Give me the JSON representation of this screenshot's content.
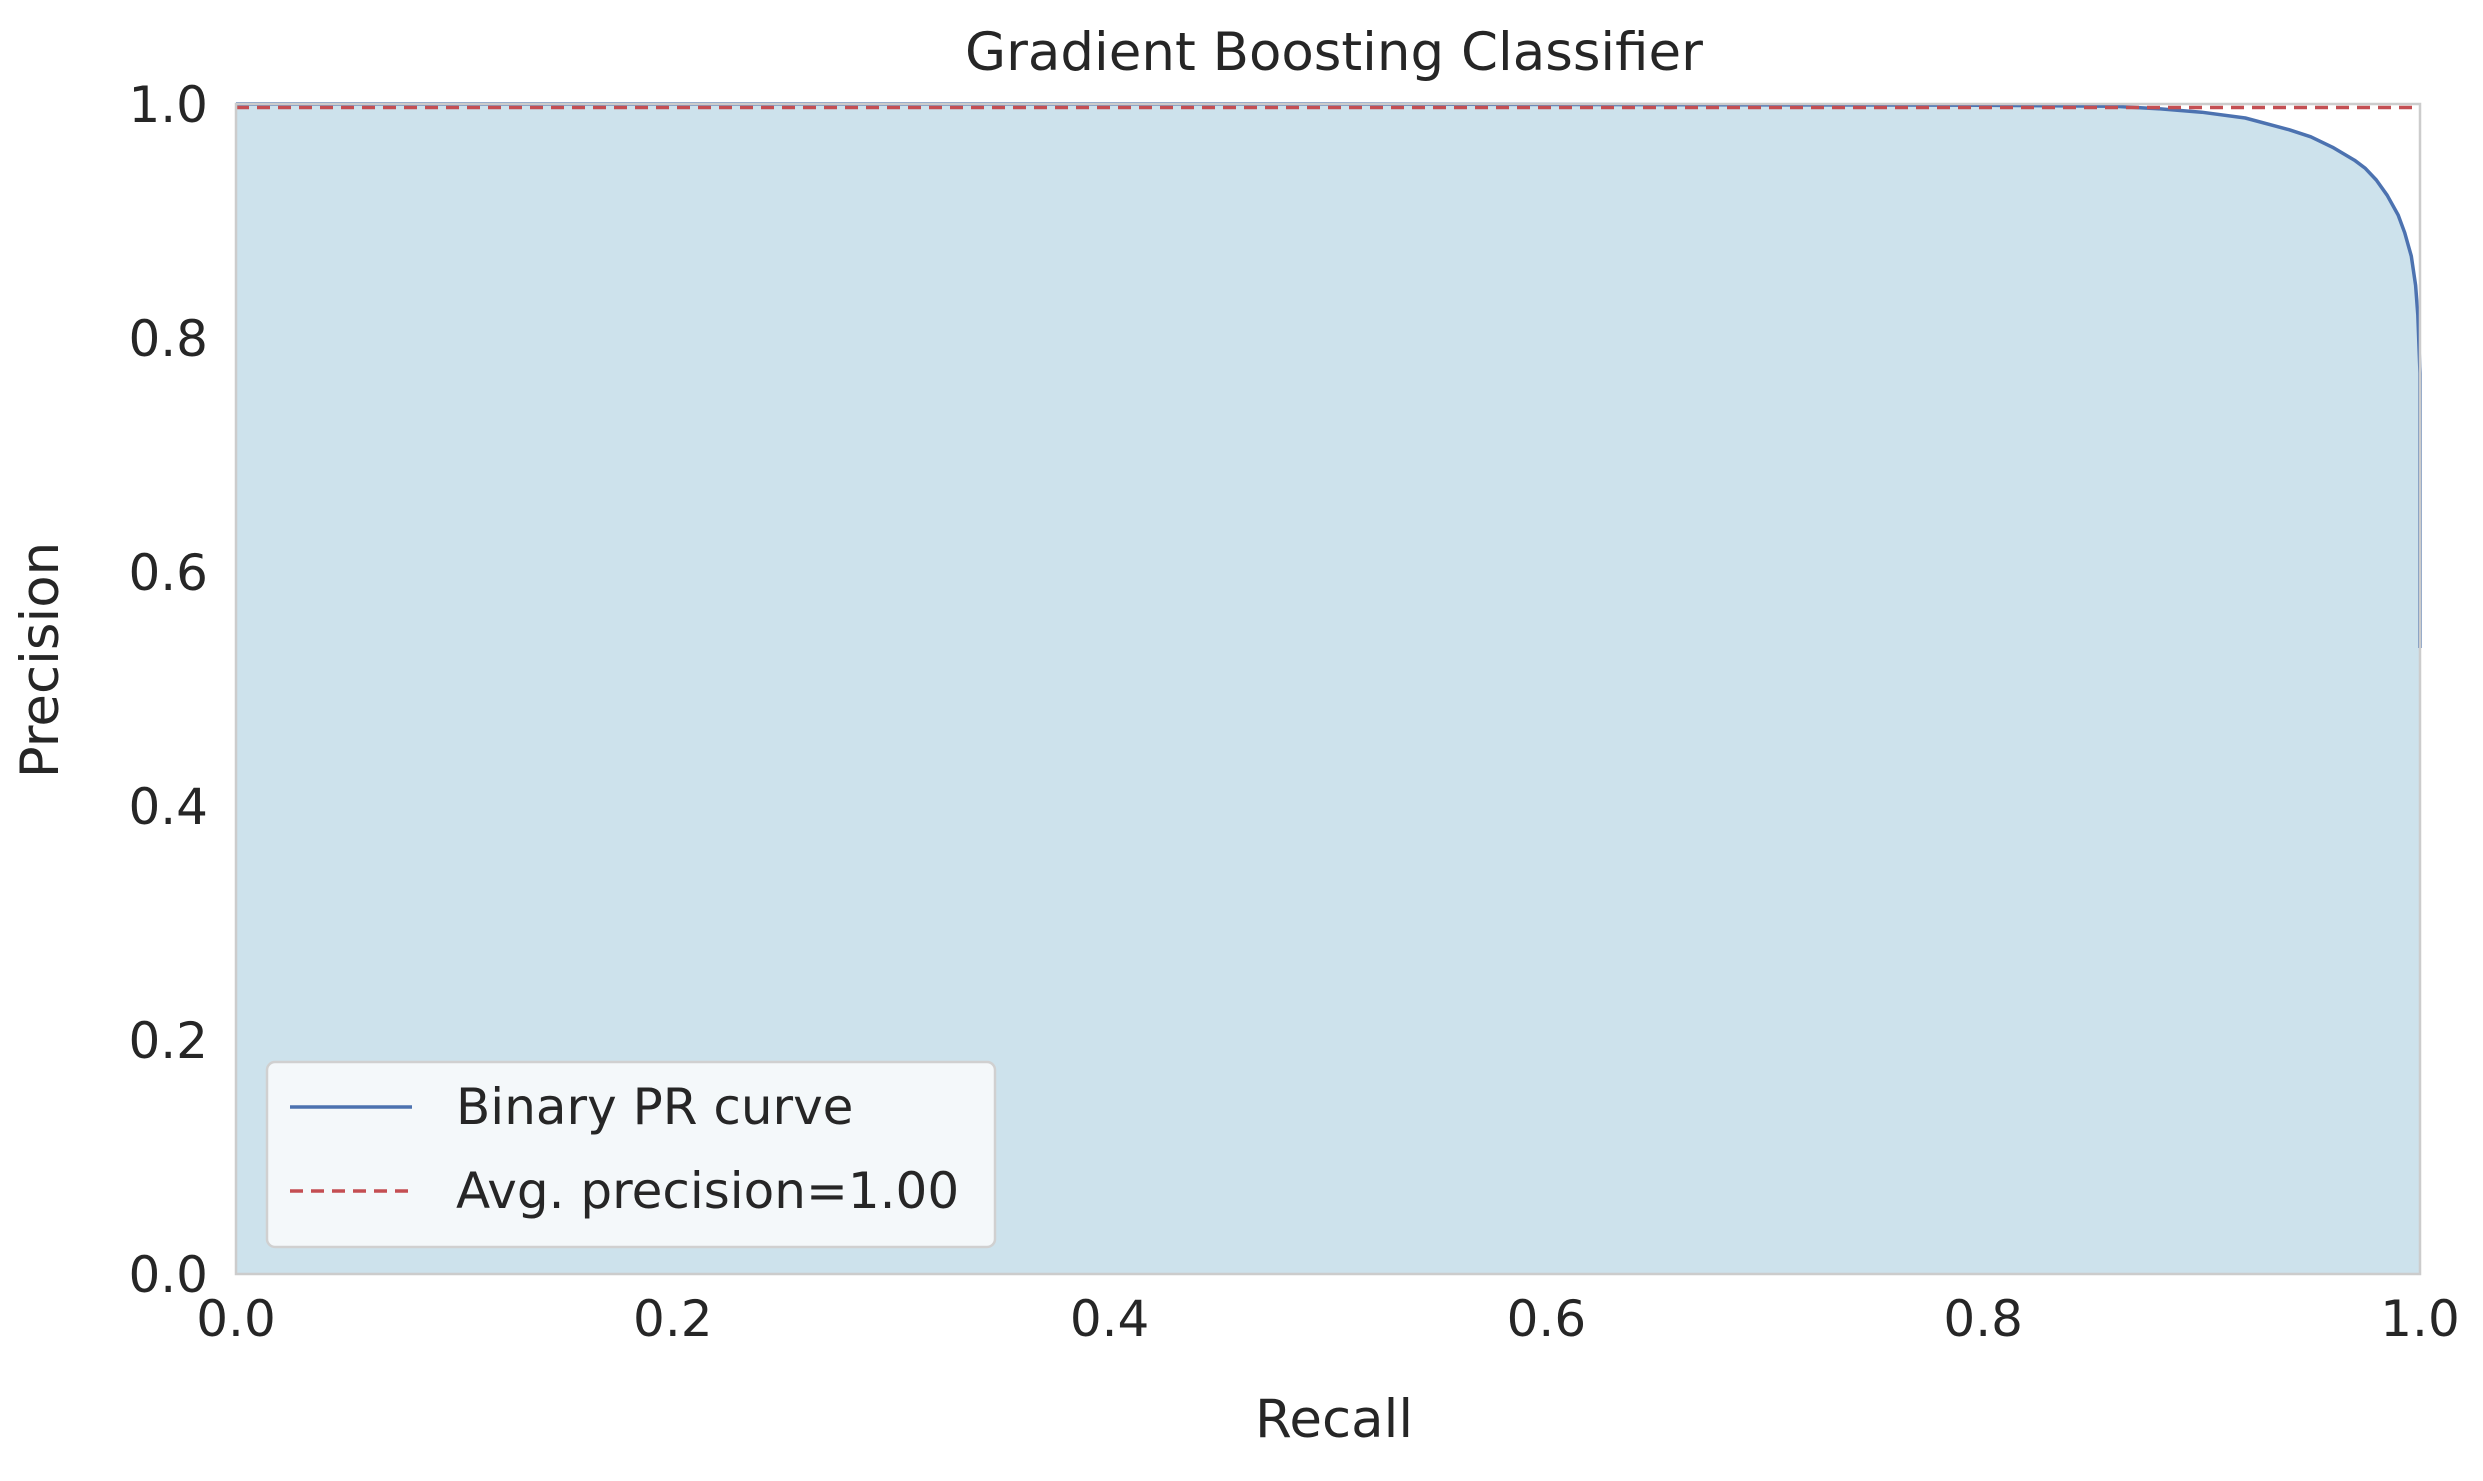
{
  "chart_data": {
    "type": "area",
    "title": "Gradient Boosting Classifier",
    "xlabel": "Recall",
    "ylabel": "Precision",
    "xlim": [
      0.0,
      1.0
    ],
    "ylim": [
      0.0,
      1.0
    ],
    "xticks": [
      "0.0",
      "0.2",
      "0.4",
      "0.6",
      "0.8",
      "1.0"
    ],
    "yticks": [
      "0.0",
      "0.2",
      "0.4",
      "0.6",
      "0.8",
      "1.0"
    ],
    "grid": false,
    "legend_position": "lower-left",
    "series": [
      {
        "name": "Binary PR curve",
        "style": "solid line with filled area below",
        "color": "#4c72b0",
        "fill_color": "#cde2ec",
        "x": [
          0.0,
          0.5,
          0.8,
          0.86,
          0.88,
          0.9,
          0.92,
          0.94,
          0.95,
          0.96,
          0.97,
          0.975,
          0.98,
          0.985,
          0.99,
          0.993,
          0.996,
          0.998,
          0.999,
          1.0,
          1.0
        ],
        "y": [
          1.0,
          1.0,
          0.999,
          0.998,
          0.996,
          0.993,
          0.988,
          0.978,
          0.972,
          0.963,
          0.952,
          0.945,
          0.935,
          0.922,
          0.905,
          0.89,
          0.87,
          0.845,
          0.82,
          0.77,
          0.535
        ]
      },
      {
        "name": "Avg. precision=1.00",
        "style": "dashed horizontal line",
        "color": "#c44e52",
        "y_const": 0.997
      }
    ]
  }
}
